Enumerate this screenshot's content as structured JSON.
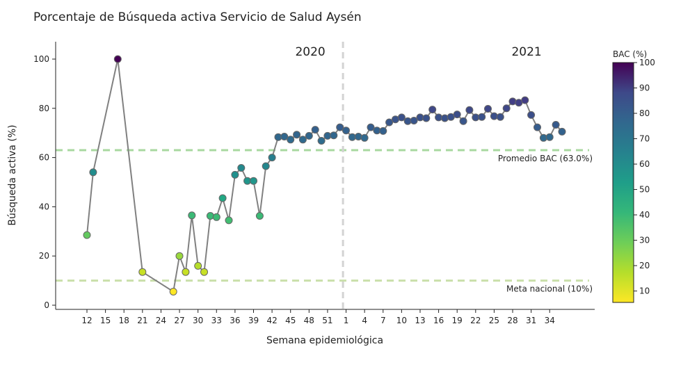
{
  "chart_data": {
    "type": "line",
    "title": "Porcentaje de Búsqueda activa Servicio de Salud Aysén",
    "xlabel": "Semana epidemiológica",
    "ylabel": "Búsqueda activa (%)",
    "ylim": [
      -1.5,
      107
    ],
    "y_ticks": [
      0,
      20,
      40,
      60,
      80,
      100
    ],
    "x_tick_labels": [
      "12",
      "15",
      "18",
      "21",
      "24",
      "27",
      "30",
      "33",
      "36",
      "39",
      "42",
      "45",
      "48",
      "51",
      "1",
      "4",
      "7",
      "10",
      "13",
      "16",
      "19",
      "22",
      "25",
      "28",
      "31",
      "34"
    ],
    "year_labels": [
      "2020",
      "2021"
    ],
    "line_color": "#808080",
    "grid": false,
    "series": [
      {
        "values_2020": [
          [
            12,
            28.5
          ],
          [
            13,
            54
          ],
          [
            17,
            100
          ],
          [
            21,
            13.5
          ],
          [
            26,
            5.5
          ],
          [
            27,
            20
          ],
          [
            28,
            13.5
          ],
          [
            29,
            36.5
          ],
          [
            30,
            16
          ],
          [
            31,
            13.5
          ],
          [
            32,
            36.3
          ],
          [
            33,
            35.8
          ],
          [
            34,
            43.5
          ],
          [
            35,
            34.5
          ],
          [
            36,
            53
          ],
          [
            37,
            55.8
          ],
          [
            38,
            50.5
          ],
          [
            39,
            50.5
          ],
          [
            40,
            36.3
          ],
          [
            41,
            56.5
          ],
          [
            42,
            60
          ],
          [
            43,
            68.3
          ],
          [
            44,
            68.5
          ],
          [
            45,
            67.3
          ],
          [
            46,
            69.3
          ],
          [
            47,
            67.3
          ],
          [
            48,
            68.8
          ],
          [
            49,
            71.3
          ],
          [
            50,
            66.8
          ],
          [
            51,
            68.8
          ],
          [
            52,
            69
          ],
          [
            53,
            72.3
          ]
        ],
        "values_2021": [
          [
            1,
            71
          ],
          [
            2,
            68.3
          ],
          [
            3,
            68.5
          ],
          [
            4,
            68
          ],
          [
            5,
            72.3
          ],
          [
            6,
            71
          ],
          [
            7,
            70.8
          ],
          [
            8,
            74.3
          ],
          [
            9,
            75.5
          ],
          [
            10,
            76.3
          ],
          [
            11,
            74.8
          ],
          [
            12,
            75
          ],
          [
            13,
            76.3
          ],
          [
            14,
            76
          ],
          [
            15,
            79.5
          ],
          [
            16,
            76.3
          ],
          [
            17,
            76
          ],
          [
            18,
            76.5
          ],
          [
            19,
            77.5
          ],
          [
            20,
            74.8
          ],
          [
            21,
            79.3
          ],
          [
            22,
            76.3
          ],
          [
            23,
            76.5
          ],
          [
            24,
            79.8
          ],
          [
            25,
            76.8
          ],
          [
            26,
            76.5
          ],
          [
            27,
            80
          ],
          [
            28,
            82.8
          ],
          [
            29,
            82.3
          ],
          [
            30,
            83.3
          ],
          [
            31,
            77.3
          ],
          [
            32,
            72.3
          ],
          [
            33,
            68
          ],
          [
            34,
            68.3
          ],
          [
            35,
            73.3
          ],
          [
            36,
            70.5
          ]
        ]
      }
    ],
    "reference_lines": [
      {
        "label": "Promedio BAC (63.0%)",
        "value": 63.0,
        "color": "#a8d8a0"
      },
      {
        "label": "Meta nacional (10%)",
        "value": 10,
        "color": "#c9dfaa"
      }
    ],
    "year_divider_color": "#d3d3d3",
    "colorbar": {
      "title": "BAC (%)",
      "range": [
        5.5,
        100
      ],
      "ticks": [
        10,
        20,
        30,
        40,
        50,
        60,
        70,
        80,
        90,
        100
      ],
      "colormap": "viridis_r"
    }
  }
}
